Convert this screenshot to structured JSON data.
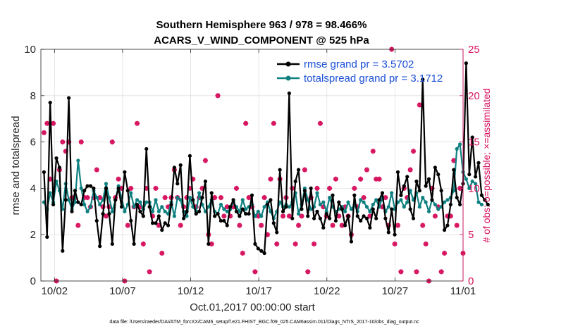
{
  "chart_data": {
    "type": "line",
    "title": [
      "Southern Hemisphere 963 / 978 = 98.466%",
      "ACARS_V_WIND_COMPONENT @ 525 hPa"
    ],
    "xlabel": "Oct.01,2017 00:00:00 start",
    "ylabel": "rmse and totalspread",
    "ylabel_right": "# of obs: o=possible; ×=assimilated",
    "footnote": "data file: /Users/raeder/DAI/ATM_forcXX/CAM6_setup/f.e21.FHIST_BGC.f09_025.CAM6assim.011/Diags_NTrS_2017-10/obs_diag_output.nc",
    "xlim": [
      0.5,
      31.5
    ],
    "ylim": [
      0,
      10
    ],
    "ylim_right": [
      0,
      25
    ],
    "x_ticks": [
      1.5,
      6.5,
      11.5,
      16.5,
      21.5,
      26.5,
      31.5
    ],
    "x_tick_labels": [
      "10/02",
      "10/07",
      "10/12",
      "10/17",
      "10/22",
      "10/27",
      "11/01"
    ],
    "y_ticks": [
      0,
      2,
      4,
      6,
      8,
      10
    ],
    "y_ticks_right": [
      0,
      5,
      10,
      15,
      20,
      25
    ],
    "grid": true,
    "legend_position": "top-right",
    "series": [
      {
        "name": "rmse grand pr = 3.5702",
        "color": "#000000",
        "values": [
          4.7,
          1.9,
          7.7,
          3.3,
          5.3,
          4.9,
          1.3,
          3.5,
          7.9,
          3.0,
          3.9,
          3.4,
          3.3,
          3.9,
          4.1,
          4.1,
          4.0,
          2.6,
          1.5,
          2.9,
          4.0,
          2.9,
          1.6,
          3.5,
          4.0,
          3.2,
          4.7,
          3.9,
          2.6,
          1.6,
          3.3,
          3.0,
          2.8,
          5.7,
          3.2,
          2.5,
          2.5,
          2.8,
          2.2,
          2.5,
          2.4,
          3.3,
          4.9,
          4.2,
          5.0,
          2.7,
          3.0,
          5.4,
          3.5,
          2.9,
          3.0,
          3.6,
          4.3,
          1.6,
          3.8,
          2.8,
          2.9,
          2.6,
          2.6,
          2.4,
          3.2,
          3.5,
          3.0,
          2.8,
          3.1,
          2.9,
          2.9,
          3.7,
          1.6,
          1.4,
          1.3,
          1.2,
          3.3,
          3.5,
          2.5,
          2.1,
          4.8,
          3.0,
          3.2,
          8.1,
          2.7,
          4.3,
          4.8,
          3.1,
          3.9,
          2.8,
          4.0,
          2.7,
          3.0,
          2.7,
          2.3,
          2.9,
          2.7,
          3.7,
          2.6,
          3.4,
          3.1,
          2.4,
          2.8,
          1.7,
          3.7,
          2.8,
          2.6,
          2.8,
          2.7,
          2.3,
          3.1,
          2.7,
          3.5,
          3.8,
          2.7,
          2.1,
          3.1,
          2.0,
          4.7,
          3.7,
          4.1,
          4.5,
          3.1,
          2.7,
          4.3,
          3.9,
          8.7,
          4.1,
          4.4,
          3.5,
          4.9,
          4.6,
          3.9,
          2.2,
          2.4,
          3.3,
          4.8,
          3.6,
          3.3,
          4.2,
          9.4,
          4.6,
          6.2,
          4.5,
          5.1,
          3.7,
          3.5,
          3.3
        ]
      },
      {
        "name": "totalspread grand pr = 3.1712",
        "color": "#0f8080",
        "values": [
          3.4,
          3.1,
          3.8,
          3.4,
          4.3,
          3.9,
          3.1,
          4.2,
          3.5,
          3.1,
          3.4,
          5.2,
          4.0,
          3.3,
          3.0,
          3.2,
          3.9,
          3.6,
          3.3,
          3.5,
          4.2,
          3.6,
          3.0,
          3.5,
          4.1,
          3.6,
          3.0,
          3.3,
          3.8,
          3.2,
          3.5,
          3.4,
          3.1,
          3.4,
          3.4,
          3.0,
          3.5,
          3.0,
          3.2,
          3.0,
          2.9,
          3.4,
          2.8,
          3.6,
          3.5,
          3.0,
          2.8,
          3.6,
          3.2,
          3.0,
          3.8,
          3.3,
          3.0,
          3.2,
          3.5,
          3.0,
          2.9,
          3.3,
          3.1,
          3.0,
          3.1,
          3.4,
          3.2,
          3.0,
          3.5,
          3.1,
          3.2,
          3.3,
          2.8,
          3.0,
          2.8,
          3.2,
          3.4,
          3.0,
          2.7,
          3.0,
          3.4,
          3.2,
          3.3,
          3.2,
          3.4,
          3.8,
          2.9,
          3.3,
          4.0,
          3.5,
          3.1,
          3.2,
          3.8,
          3.3,
          3.4,
          3.0,
          3.6,
          3.2,
          3.0,
          3.1,
          3.2,
          3.0,
          3.4,
          3.1,
          3.3,
          3.0,
          3.5,
          3.4,
          3.2,
          3.0,
          3.3,
          3.5,
          3.2,
          3.6,
          3.0,
          3.2,
          3.8,
          3.1,
          3.4,
          3.5,
          3.2,
          3.4,
          3.9,
          3.5,
          3.8,
          3.2,
          3.6,
          3.4,
          3.0,
          3.5,
          3.3,
          3.1,
          3.2,
          3.4,
          3.5,
          3.6,
          3.9,
          5.7,
          5.9,
          4.7,
          4.4,
          4.0,
          4.3,
          4.2,
          3.4,
          3.3
        ]
      }
    ],
    "possible_marker": "o",
    "assimilated_marker": "*",
    "marker_color": "#d7135f",
    "obs_counts": [
      16,
      17,
      11,
      17,
      0,
      12,
      15,
      14,
      15,
      9,
      9,
      6,
      15,
      9,
      9,
      8,
      9,
      12,
      9,
      8,
      7,
      8,
      15,
      9,
      11,
      10,
      0,
      6,
      10,
      8,
      17,
      8,
      4,
      10,
      1,
      7,
      10,
      6,
      3,
      9,
      8,
      9,
      12,
      9,
      6,
      8,
      9,
      10,
      11,
      8,
      9,
      10,
      13,
      5,
      4,
      9,
      20,
      9,
      7,
      8,
      7,
      8,
      10,
      6,
      3,
      17,
      9,
      8,
      1,
      7,
      6,
      9,
      5,
      11,
      17,
      4,
      11,
      7,
      9,
      7,
      10,
      4,
      6,
      7,
      12,
      1,
      9,
      4,
      10,
      17,
      8,
      7,
      10,
      6,
      11,
      7,
      6,
      8,
      7,
      5,
      10,
      8,
      11,
      9,
      12,
      7,
      14,
      11,
      11,
      8,
      9,
      6,
      25,
      4,
      6,
      1,
      10,
      9,
      12,
      14,
      1,
      19,
      6,
      4,
      0,
      10,
      7,
      8,
      1,
      3,
      7,
      7,
      13,
      6,
      10,
      3
    ]
  }
}
